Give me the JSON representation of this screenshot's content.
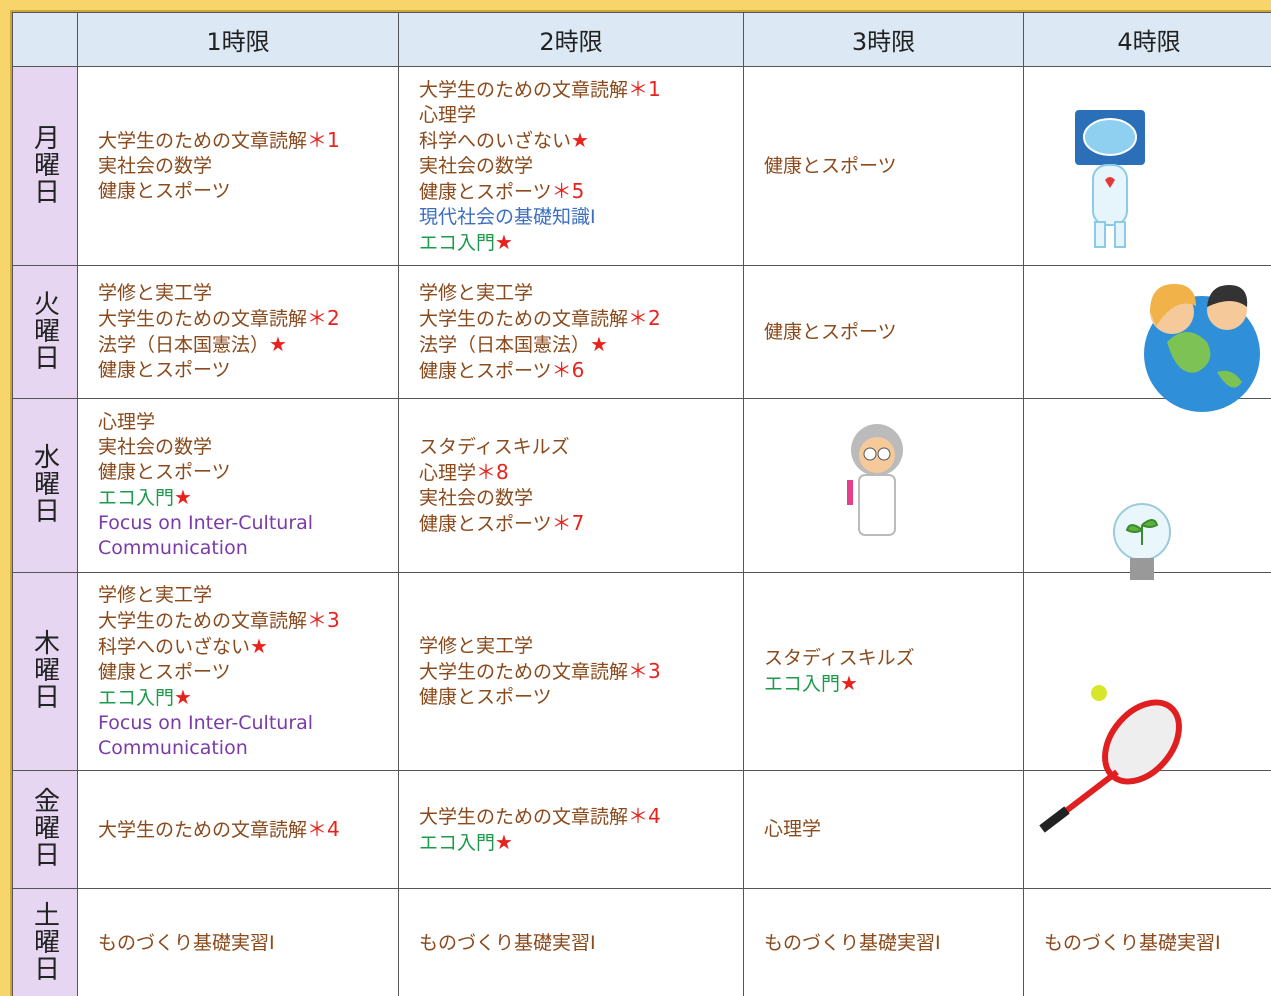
{
  "header": {
    "columns": [
      "1時限",
      "2時限",
      "3時限",
      "4時限"
    ]
  },
  "default_color": "#8a4a1c",
  "mark_color": "#e8231e",
  "rows": [
    {
      "day": "月曜日",
      "cells": [
        [
          {
            "text": "大学生のための文章読解",
            "mark": "＊1"
          },
          {
            "text": "実社会の数学"
          },
          {
            "text": "健康とスポーツ"
          }
        ],
        [
          {
            "text": "大学生のための文章読解",
            "mark": "＊1"
          },
          {
            "text": "心理学"
          },
          {
            "text": "科学へのいざない",
            "mark": "★"
          },
          {
            "text": "実社会の数学"
          },
          {
            "text": "健康とスポーツ",
            "mark": "＊5"
          },
          {
            "text": "現代社会の基礎知識Ⅰ",
            "color": "#3d6fc0"
          },
          {
            "text": "エコ入門",
            "mark": "★",
            "color": "#1d9a4c"
          }
        ],
        [
          {
            "text": "健康とスポーツ"
          }
        ],
        []
      ]
    },
    {
      "day": "火曜日",
      "cells": [
        [
          {
            "text": "学修と実工学"
          },
          {
            "text": "大学生のための文章読解",
            "mark": "＊2"
          },
          {
            "text": "法学（日本国憲法）",
            "mark": "★"
          },
          {
            "text": "健康とスポーツ"
          }
        ],
        [
          {
            "text": "学修と実工学"
          },
          {
            "text": "大学生のための文章読解",
            "mark": "＊2"
          },
          {
            "text": "法学（日本国憲法）",
            "mark": "★"
          },
          {
            "text": "健康とスポーツ",
            "mark": "＊6"
          }
        ],
        [
          {
            "text": "健康とスポーツ"
          }
        ],
        []
      ]
    },
    {
      "day": "水曜日",
      "cells": [
        [
          {
            "text": "心理学"
          },
          {
            "text": "実社会の数学"
          },
          {
            "text": "健康とスポーツ"
          },
          {
            "text": "エコ入門",
            "mark": "★",
            "color": "#1d9a4c"
          },
          {
            "text": "Focus on Inter-Cultural Communication",
            "color": "#7a3aa8"
          }
        ],
        [
          {
            "text": "スタディスキルズ"
          },
          {
            "text": "心理学",
            "mark": "＊8"
          },
          {
            "text": "実社会の数学"
          },
          {
            "text": "健康とスポーツ",
            "mark": "＊7"
          }
        ],
        [],
        []
      ]
    },
    {
      "day": "木曜日",
      "cells": [
        [
          {
            "text": "学修と実工学"
          },
          {
            "text": "大学生のための文章読解",
            "mark": "＊3"
          },
          {
            "text": "科学へのいざない",
            "mark": "★"
          },
          {
            "text": "健康とスポーツ"
          },
          {
            "text": "エコ入門",
            "mark": "★",
            "color": "#1d9a4c"
          },
          {
            "text": "Focus on Inter-Cultural Communication",
            "color": "#7a3aa8"
          }
        ],
        [
          {
            "text": "学修と実工学"
          },
          {
            "text": "大学生のための文章読解",
            "mark": "＊3"
          },
          {
            "text": "健康とスポーツ"
          }
        ],
        [
          {
            "text": "スタディスキルズ"
          },
          {
            "text": "エコ入門",
            "mark": "★",
            "color": "#1d9a4c"
          }
        ],
        []
      ]
    },
    {
      "day": "金曜日",
      "cells": [
        [
          {
            "text": "大学生のための文章読解",
            "mark": "＊4"
          }
        ],
        [
          {
            "text": "大学生のための文章読解",
            "mark": "＊4"
          },
          {
            "text": "エコ入門",
            "mark": "★",
            "color": "#1d9a4c"
          }
        ],
        [
          {
            "text": "心理学"
          }
        ],
        []
      ]
    },
    {
      "day": "土曜日",
      "cells": [
        [
          {
            "text": "ものづくり基礎実習Ⅰ"
          }
        ],
        [
          {
            "text": "ものづくり基礎実習Ⅰ"
          }
        ],
        [
          {
            "text": "ものづくり基礎実習Ⅰ"
          }
        ],
        [
          {
            "text": "ものづくり基礎実習Ⅰ"
          }
        ]
      ]
    }
  ]
}
